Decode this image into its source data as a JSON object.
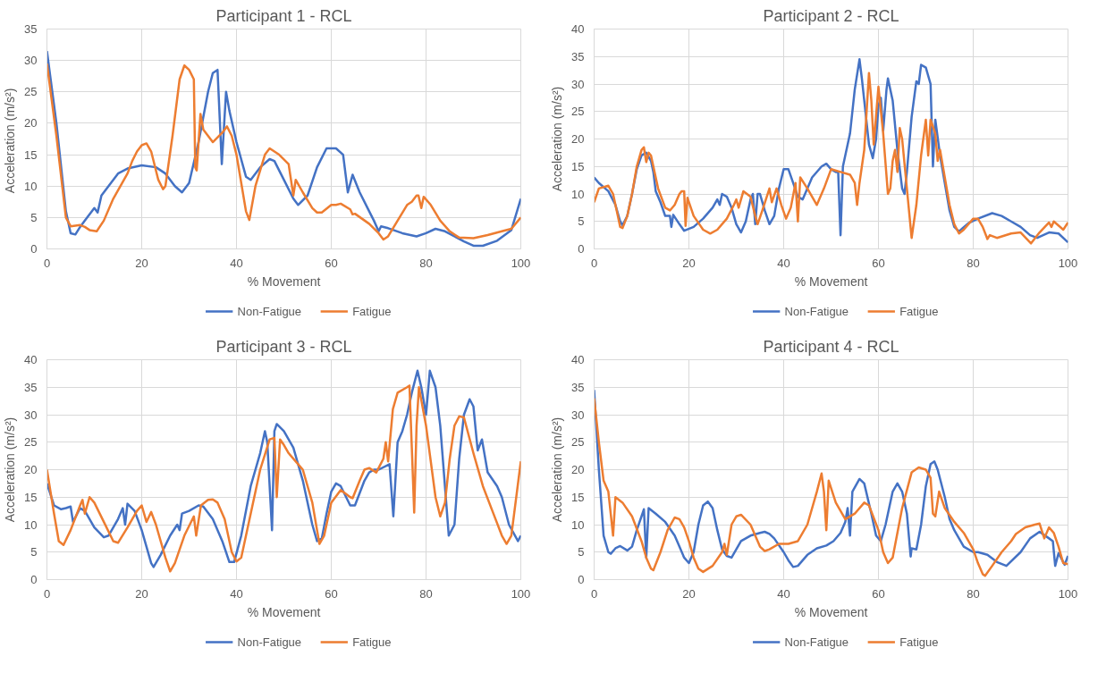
{
  "chart_data": [
    {
      "type": "line",
      "title": "Participant 1 - RCL",
      "xlabel": "% Movement",
      "ylabel": "Acceleration  (m/s²)",
      "xlim": [
        0,
        100
      ],
      "xticks": [
        0,
        20,
        40,
        60,
        80,
        100
      ],
      "ylim": [
        0,
        35
      ],
      "yticks": [
        0,
        5,
        10,
        15,
        20,
        25,
        30,
        35
      ],
      "grid": true,
      "legend": "bottom",
      "series": [
        {
          "name": "Non-Fatigue",
          "color": "#4472c4",
          "x": [
            0,
            2,
            4,
            5,
            6,
            7,
            8,
            10,
            10.7,
            11.5,
            13,
            15,
            17,
            20,
            23,
            25,
            27,
            28.5,
            30,
            32,
            34,
            35,
            36,
            36.9,
            37.8,
            38.5,
            40,
            42,
            43,
            45,
            47,
            48,
            50,
            52,
            53,
            55,
            57,
            59,
            61,
            62.5,
            63.5,
            64.5,
            66,
            68,
            69,
            70,
            70.5,
            72,
            75,
            78,
            80,
            82,
            84,
            86,
            88,
            90,
            92,
            95,
            98,
            100
          ],
          "values": [
            31.5,
            20,
            6,
            2.5,
            2.3,
            3.5,
            4.5,
            6.5,
            5.8,
            8.5,
            10,
            12,
            12.8,
            13.3,
            13,
            12,
            10,
            9,
            10.5,
            17,
            25,
            28,
            28.5,
            13.5,
            25,
            22,
            17,
            11.5,
            11,
            13,
            14.3,
            14,
            11,
            8,
            7,
            8.5,
            13,
            16,
            16,
            15,
            9,
            11.8,
            9,
            6,
            4.5,
            2.8,
            3.6,
            3.3,
            2.5,
            2,
            2.5,
            3.2,
            2.8,
            2,
            1.2,
            0.5,
            0.5,
            1.3,
            3,
            8
          ]
        },
        {
          "name": "Fatigue",
          "color": "#ed7d31",
          "x": [
            0,
            2,
            4,
            5,
            7,
            8,
            9,
            10.5,
            12,
            14,
            17,
            18,
            19,
            20,
            21,
            22,
            23.5,
            24.5,
            25,
            26.5,
            28,
            29,
            30,
            31,
            31.3,
            31.6,
            32.4,
            33,
            35,
            37,
            38,
            39,
            40,
            42,
            42.7,
            44,
            46,
            47,
            49,
            51,
            52,
            52.5,
            54,
            56,
            57,
            58,
            60,
            61,
            62,
            64,
            64.5,
            65,
            68,
            70,
            71,
            72,
            74,
            76,
            77,
            78,
            78.4,
            79,
            79.5,
            81,
            83,
            85,
            87,
            90,
            93,
            96,
            98,
            100
          ],
          "values": [
            29.5,
            18,
            5,
            3.6,
            3.8,
            3.5,
            3,
            2.8,
            4.5,
            8,
            12,
            14,
            15.5,
            16.5,
            16.8,
            15.5,
            11,
            9.5,
            10,
            18,
            27,
            29.2,
            28.5,
            27,
            13,
            12.5,
            21.5,
            19,
            17,
            18.5,
            19.5,
            18,
            15,
            6,
            4.6,
            10,
            15,
            16,
            15,
            13.5,
            8.5,
            11,
            9,
            6.5,
            5.8,
            5.8,
            7,
            7,
            7.2,
            6.3,
            5.5,
            5.6,
            4,
            2.5,
            1.5,
            2,
            4.5,
            7,
            7.5,
            8.5,
            8.5,
            6.5,
            8.3,
            7,
            4.5,
            2.8,
            1.8,
            1.7,
            2.2,
            2.8,
            3.2,
            5
          ]
        }
      ]
    },
    {
      "type": "line",
      "title": "Participant 2 - RCL",
      "xlabel": "% Movement",
      "ylabel": "Acceleration (m/s²)",
      "xlim": [
        0,
        100
      ],
      "xticks": [
        0,
        20,
        40,
        60,
        80,
        100
      ],
      "ylim": [
        0,
        40
      ],
      "yticks": [
        0,
        5,
        10,
        15,
        20,
        25,
        30,
        35,
        40
      ],
      "grid": true,
      "legend": "bottom",
      "series": [
        {
          "name": "Non-Fatigue",
          "color": "#4472c4",
          "x": [
            0,
            1,
            3,
            4.5,
            5.5,
            6,
            7,
            8,
            9,
            10,
            11,
            12,
            12.5,
            13,
            14,
            15,
            16,
            16.3,
            16.7,
            18,
            19,
            21,
            23,
            25,
            26,
            26.5,
            27,
            28,
            29,
            30,
            31,
            32,
            33,
            33.5,
            34,
            34.5,
            35,
            36,
            37,
            38,
            39,
            40,
            41,
            42,
            43,
            44,
            46,
            48,
            49,
            50,
            51,
            51.5,
            52,
            52.5,
            54,
            55,
            56,
            56.5,
            57,
            58,
            58.8,
            59.5,
            60,
            60.5,
            61,
            61.7,
            62,
            63,
            64,
            65,
            65.5,
            66,
            67,
            68,
            68.5,
            69,
            70,
            71,
            71.5,
            72,
            73,
            74,
            75,
            76,
            77,
            79,
            81,
            84,
            86,
            88,
            90,
            92,
            93.5,
            96,
            98,
            100
          ],
          "values": [
            13,
            12,
            10.5,
            8,
            5,
            4.3,
            6,
            10,
            14.5,
            17,
            17.5,
            16,
            14,
            10.5,
            8.5,
            6,
            6,
            4,
            6.2,
            4.5,
            3.3,
            4,
            5.5,
            7.5,
            9,
            8,
            10,
            9.5,
            7.5,
            4.5,
            3,
            5,
            9,
            10,
            4.5,
            10,
            10,
            7,
            4.5,
            6,
            11,
            14.5,
            14.5,
            12,
            9.5,
            9,
            13,
            15,
            15.5,
            14.5,
            14,
            14,
            2.5,
            15,
            21,
            29,
            34.5,
            31,
            27,
            19,
            16.5,
            20,
            26,
            27.5,
            21.5,
            29,
            31,
            27,
            18,
            11,
            10,
            14,
            24,
            30.5,
            30,
            33.5,
            33,
            30,
            15,
            23.5,
            17,
            12,
            7,
            4,
            3.2,
            4.7,
            5.5,
            6.5,
            6,
            5,
            4,
            2.5,
            2,
            3,
            2.8,
            1.2
          ]
        },
        {
          "name": "Fatigue",
          "color": "#ed7d31",
          "x": [
            0,
            1,
            3,
            4,
            5,
            5.5,
            6,
            7,
            8,
            9,
            10,
            10.5,
            11,
            11.5,
            12,
            13.5,
            15,
            16,
            17,
            18,
            18.5,
            19,
            19.3,
            19.7,
            21,
            23,
            24.5,
            26,
            28,
            29.5,
            30,
            30.5,
            31.5,
            33,
            34,
            34.5,
            35.5,
            37,
            37.5,
            38.5,
            39.5,
            40.5,
            41.5,
            42.5,
            43,
            43.5,
            45,
            47,
            48.5,
            50,
            52,
            54,
            55,
            55.5,
            56,
            57,
            58,
            58.5,
            59,
            60,
            61,
            62,
            62.5,
            63,
            63.5,
            64,
            64.5,
            65,
            66,
            67,
            68,
            69,
            70,
            70.5,
            71,
            72,
            72.5,
            73,
            74,
            75,
            76,
            77,
            78,
            80,
            81,
            82,
            83,
            83.5,
            85,
            88,
            90,
            92.2,
            94,
            96,
            96.5,
            97,
            99,
            100
          ],
          "values": [
            8.5,
            11,
            11.5,
            10,
            6,
            4,
            3.8,
            6,
            10,
            15,
            18,
            18.5,
            15.8,
            17.5,
            17,
            11,
            7.5,
            7,
            8,
            10,
            10.5,
            10.5,
            4.2,
            9.3,
            6,
            3.5,
            2.8,
            3.5,
            5.5,
            8,
            9,
            7.5,
            10.5,
            9.5,
            6,
            4.5,
            7,
            11,
            8.5,
            11,
            8,
            5.5,
            7.5,
            12,
            5,
            13,
            11,
            8,
            11,
            14.5,
            14,
            13.5,
            12,
            8,
            12,
            18,
            32,
            27,
            19,
            29.5,
            21,
            10,
            11,
            16,
            18,
            14,
            22,
            20,
            11,
            2,
            8,
            17,
            23.5,
            17,
            23.5,
            21,
            16,
            18,
            13,
            8,
            4.5,
            2.8,
            3.5,
            5.5,
            5.5,
            4,
            1.8,
            2.5,
            2,
            2.8,
            3,
            1,
            3,
            4.8,
            4,
            5,
            3.5,
            4.8
          ]
        }
      ]
    },
    {
      "type": "line",
      "title": "Participant 3 - RCL",
      "xlabel": "% Movement",
      "ylabel": "Acceleration (m/s²)",
      "xlim": [
        0,
        100
      ],
      "xticks": [
        0,
        20,
        40,
        60,
        80,
        100
      ],
      "ylim": [
        0,
        40
      ],
      "yticks": [
        0,
        5,
        10,
        15,
        20,
        25,
        30,
        35,
        40
      ],
      "grid": true,
      "legend": "bottom",
      "series": [
        {
          "name": "Non-Fatigue",
          "color": "#4472c4",
          "x": [
            0,
            1.5,
            3,
            4,
            5,
            5.5,
            7,
            8,
            10,
            12,
            13,
            15,
            16,
            16.5,
            17,
            18.5,
            20,
            22,
            22.5,
            24,
            26,
            27.5,
            28,
            28.5,
            30,
            32,
            33,
            35,
            37,
            38.5,
            39.5,
            41,
            43,
            45,
            46,
            46.5,
            47.5,
            48,
            48.5,
            50,
            52,
            54,
            56,
            57,
            58,
            59,
            60,
            61,
            62,
            64,
            65,
            67,
            68,
            69,
            70,
            72.3,
            73.1,
            74,
            75,
            76,
            77,
            78.2,
            79,
            80,
            80.8,
            82,
            83,
            84.8,
            86,
            87,
            88,
            89.2,
            90,
            90.9,
            91.8,
            93,
            95,
            96,
            97.5,
            99.4,
            100
          ],
          "values": [
            17.5,
            13.5,
            12.8,
            13,
            13.3,
            10.5,
            13,
            12.5,
            9.5,
            7.7,
            8,
            11,
            13,
            10,
            13.8,
            12.5,
            9,
            3,
            2.3,
            4.5,
            8,
            10,
            9,
            12,
            12.5,
            13.5,
            13.3,
            11,
            7,
            3.2,
            3.2,
            8,
            17,
            23,
            27,
            25,
            9,
            27,
            28.3,
            27,
            24,
            18,
            10,
            7,
            7.5,
            12,
            16,
            17.5,
            17,
            13.5,
            13.5,
            18,
            19.5,
            20,
            20,
            21,
            11.5,
            25,
            27,
            30,
            34,
            38,
            35,
            30,
            38,
            35,
            28,
            8,
            10,
            22,
            30,
            32.8,
            31.5,
            23.5,
            25.5,
            19.5,
            17,
            15,
            10,
            7,
            8
          ]
        },
        {
          "name": "Fatigue",
          "color": "#ed7d31",
          "x": [
            0,
            1.5,
            2.5,
            3.5,
            5,
            7,
            7.5,
            8,
            9,
            10,
            12,
            14,
            15,
            17,
            19,
            20,
            21,
            22,
            23,
            25,
            26,
            27,
            29,
            31,
            31.5,
            32.5,
            34,
            35,
            36,
            37.5,
            39,
            40,
            41,
            43,
            45,
            47,
            48,
            48.5,
            49.2,
            50,
            51,
            53,
            54,
            56,
            57.5,
            58.5,
            60,
            62,
            64,
            64.5,
            66,
            67,
            68,
            69.5,
            71,
            71.5,
            72,
            73,
            74,
            76,
            76.5,
            77,
            77.5,
            78,
            78.5,
            80,
            82,
            83,
            84,
            85,
            86,
            87,
            88,
            90,
            92,
            94,
            96,
            97,
            98,
            100
          ],
          "values": [
            20,
            12,
            7,
            6.3,
            9,
            13.5,
            14.5,
            12,
            15,
            14,
            10.5,
            7,
            6.7,
            9.5,
            12.5,
            13.5,
            10.5,
            12.3,
            10,
            4,
            1.5,
            3,
            8,
            11.5,
            8,
            13.5,
            14.5,
            14.6,
            14,
            11,
            5,
            3.3,
            4,
            12,
            20,
            25.5,
            25.8,
            15,
            25.5,
            24.5,
            23,
            21,
            20,
            14,
            6.5,
            8,
            14,
            16.3,
            15,
            14.8,
            18,
            20,
            20.3,
            19.5,
            22,
            25,
            21.5,
            31,
            34,
            35,
            35.3,
            24,
            12.2,
            28,
            35,
            28,
            15,
            11.5,
            14,
            22,
            28,
            29.7,
            29.5,
            23,
            17,
            12.5,
            8,
            6.5,
            8,
            21.5
          ]
        }
      ]
    },
    {
      "type": "line",
      "title": "Participant 4 - RCL",
      "xlabel": "% Movement",
      "ylabel": "Acceleration (m/s²)",
      "xlim": [
        0,
        100
      ],
      "xticks": [
        0,
        20,
        40,
        60,
        80,
        100
      ],
      "ylim": [
        0,
        40
      ],
      "yticks": [
        0,
        5,
        10,
        15,
        20,
        25,
        30,
        35,
        40
      ],
      "grid": true,
      "legend": "bottom",
      "series": [
        {
          "name": "Non-Fatigue",
          "color": "#4472c4",
          "x": [
            0,
            1,
            2,
            3,
            3.5,
            4.5,
            5.5,
            7,
            8,
            9,
            10,
            10.5,
            11,
            11.5,
            13,
            15,
            17,
            18,
            19,
            20,
            21,
            22,
            23,
            24,
            25,
            26,
            27,
            28,
            29,
            30,
            31,
            33,
            35,
            36,
            37,
            38,
            40,
            41,
            42,
            43,
            45,
            47,
            49,
            50.5,
            52,
            53,
            53.5,
            54,
            54.5,
            56,
            57,
            58.5,
            59.5,
            60.5,
            61.5,
            63,
            64,
            65,
            66,
            66.8,
            67,
            68,
            69,
            70,
            71,
            71.8,
            72.5,
            74,
            75,
            76,
            77,
            78,
            80,
            81,
            83,
            85,
            87,
            90,
            92,
            94,
            96,
            96.8,
            97.3,
            98,
            99.3,
            100
          ],
          "values": [
            34.5,
            20,
            8,
            5,
            4.7,
            5.7,
            6.1,
            5.3,
            6,
            9,
            11.5,
            12.8,
            4,
            13,
            12,
            10.5,
            8,
            6,
            4,
            3,
            5,
            10,
            13.5,
            14.2,
            13,
            9,
            5.5,
            4.3,
            4,
            5.5,
            7,
            8,
            8.5,
            8.7,
            8.3,
            7.5,
            5,
            3.5,
            2.3,
            2.5,
            4.5,
            5.7,
            6.2,
            7,
            8.5,
            10.5,
            13,
            8,
            16,
            18.3,
            17.5,
            12,
            8,
            7,
            10,
            16,
            17.5,
            16,
            12,
            4.2,
            5.7,
            5.5,
            10,
            17,
            21,
            21.5,
            20,
            15,
            11,
            9,
            7.5,
            6,
            5,
            5,
            4.5,
            3.2,
            2.5,
            5,
            7.5,
            8.7,
            7.5,
            7,
            2.5,
            4.8,
            2.7,
            4.3
          ]
        },
        {
          "name": "Fatigue",
          "color": "#ed7d31",
          "x": [
            0,
            1,
            2,
            3,
            3.5,
            4,
            4.5,
            6,
            8,
            10,
            11,
            12,
            12.5,
            14,
            15.5,
            17,
            18,
            19,
            20,
            21,
            22,
            23,
            25,
            27,
            27.5,
            28,
            29,
            30,
            31,
            33,
            35,
            36,
            37,
            39,
            41,
            43,
            45,
            47,
            48,
            48.5,
            49,
            49.5,
            51,
            53,
            55,
            57,
            58,
            60,
            61,
            62,
            63,
            65,
            67,
            68.5,
            70,
            71,
            71.5,
            72,
            72.8,
            74,
            76,
            78,
            80,
            81,
            82,
            82.5,
            84,
            86,
            88,
            89,
            91,
            93,
            94,
            95,
            96,
            97,
            98,
            99,
            100
          ],
          "values": [
            33,
            25,
            18,
            16,
            12,
            8,
            15,
            14,
            11.5,
            7,
            4,
            2,
            1.7,
            5,
            9,
            11.3,
            11,
            9.5,
            7,
            4,
            2,
            1.4,
            2.5,
            5,
            6.5,
            4.5,
            10,
            11.5,
            11.8,
            10,
            6,
            5.2,
            5.5,
            6.5,
            6.5,
            7,
            10,
            16,
            19.3,
            16,
            9,
            18,
            14,
            11,
            12,
            14,
            13.5,
            9,
            5,
            3,
            4,
            13,
            19.5,
            20.4,
            20,
            18.5,
            12,
            11.5,
            16,
            13,
            10.5,
            8.5,
            5.5,
            3,
            1,
            0.7,
            2.5,
            5,
            7,
            8.3,
            9.5,
            10,
            10.2,
            7.5,
            9.5,
            8.5,
            6,
            3,
            2.8
          ]
        }
      ]
    }
  ]
}
